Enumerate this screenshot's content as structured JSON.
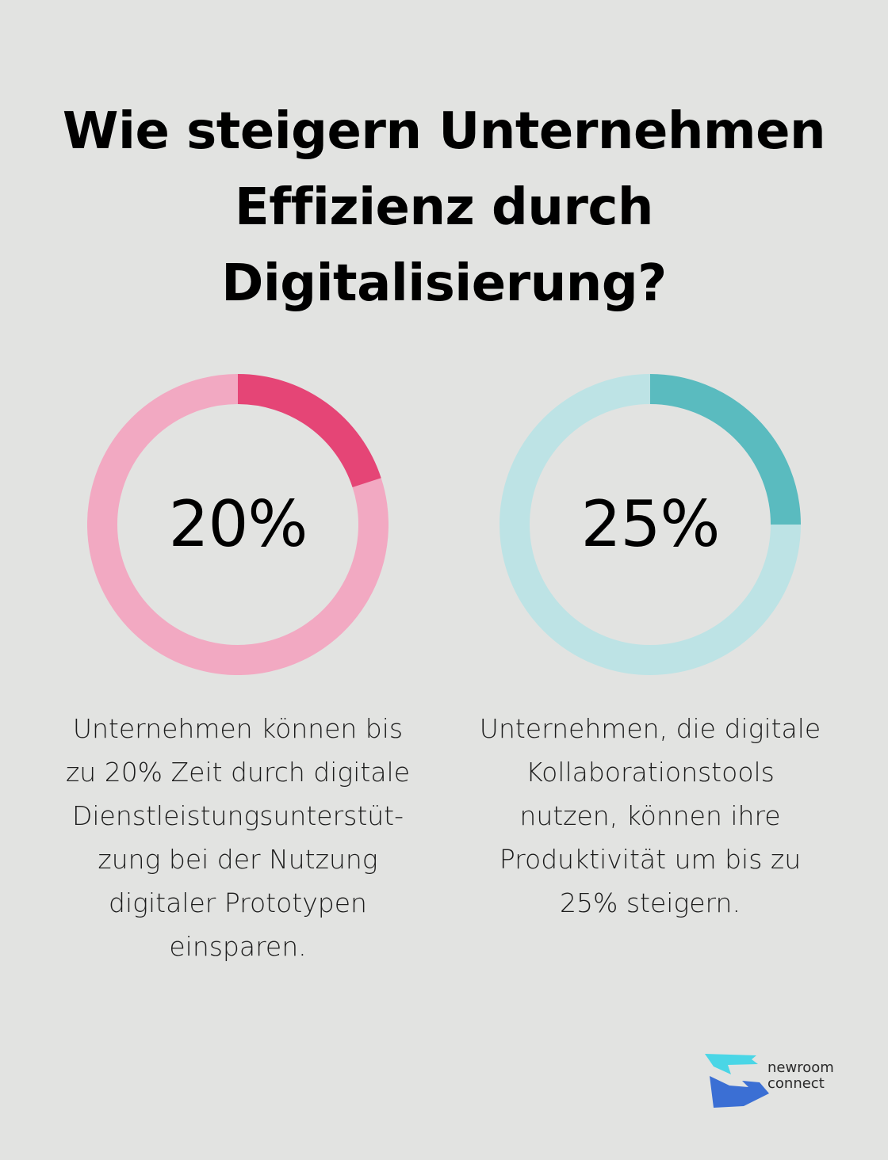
{
  "title_lines": [
    "Wie steigern Unternehmen",
    "Effizienz durch",
    "Digitalisierung?"
  ],
  "chart_data": [
    {
      "type": "pie",
      "value": 20,
      "label": "20%",
      "colors": {
        "highlight": "#e54576",
        "track": "#f2a9c2"
      },
      "description_lines": [
        "Unternehmen können bis",
        "zu 20% Zeit durch digitale",
        "Dienstleistungsunterstüt-",
        "zung bei der Nutzung",
        "digitaler Prototypen",
        "einsparen."
      ]
    },
    {
      "type": "pie",
      "value": 25,
      "label": "25%",
      "colors": {
        "highlight": "#5abbbf",
        "track": "#bde3e5"
      },
      "description_lines": [
        "Unternehmen, die digitale",
        "Kollaborationstools",
        "nutzen, können ihre",
        "Produktivität um bis zu",
        "25% steigern."
      ]
    }
  ],
  "logo": {
    "text_lines": [
      "newroom",
      "connect"
    ],
    "colors": {
      "top": "#4ad6e6",
      "bottom": "#3b6fd4"
    }
  }
}
